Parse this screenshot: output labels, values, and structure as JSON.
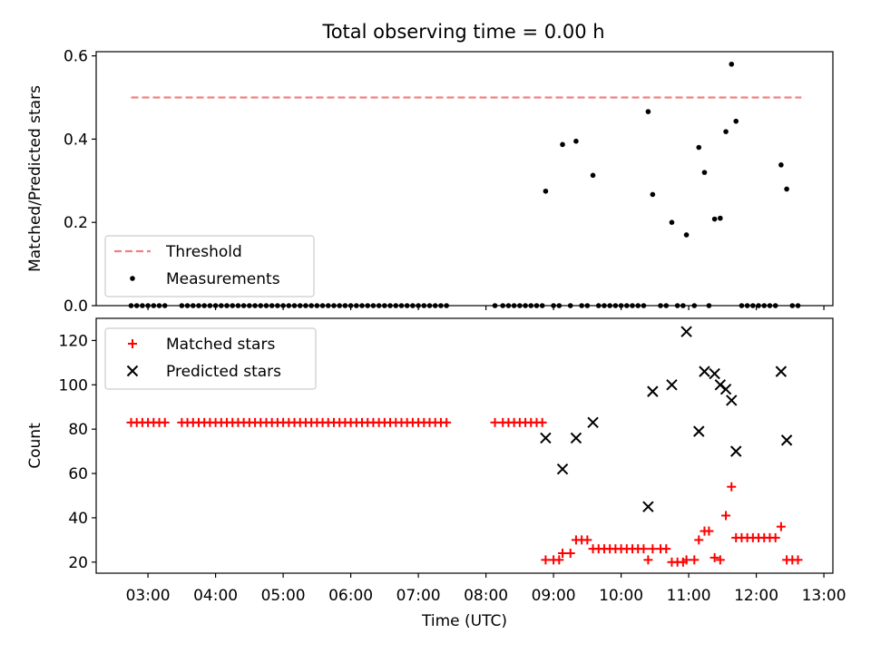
{
  "title": "Total observing time = 0.00 h",
  "colors": {
    "threshold": "#f08080",
    "measurement": "#000000",
    "matched": "#ff0000",
    "predicted": "#000000"
  },
  "chart_data": [
    {
      "type": "scatter",
      "ylabel": "Matched/Predicted stars",
      "ylim": [
        0,
        0.61
      ],
      "yticks": [
        "0.0",
        "0.2",
        "0.4",
        "0.6"
      ],
      "xlim": [
        "02:14",
        "13:08"
      ],
      "legend_position": "lower-left",
      "legend": [
        "Threshold",
        "Measurements"
      ],
      "threshold": {
        "name": "Threshold",
        "value": 0.5,
        "x_range": [
          "02:45",
          "12:40"
        ]
      },
      "series": [
        {
          "name": "Measurements",
          "points": [
            [
              "02:45",
              0
            ],
            [
              "02:50",
              0
            ],
            [
              "02:55",
              0
            ],
            [
              "03:00",
              0
            ],
            [
              "03:05",
              0
            ],
            [
              "03:10",
              0
            ],
            [
              "03:15",
              0
            ],
            [
              "03:30",
              0
            ],
            [
              "03:35",
              0
            ],
            [
              "03:40",
              0
            ],
            [
              "03:45",
              0
            ],
            [
              "03:50",
              0
            ],
            [
              "03:55",
              0
            ],
            [
              "04:00",
              0
            ],
            [
              "04:05",
              0
            ],
            [
              "04:10",
              0
            ],
            [
              "04:15",
              0
            ],
            [
              "04:20",
              0
            ],
            [
              "04:25",
              0
            ],
            [
              "04:30",
              0
            ],
            [
              "04:35",
              0
            ],
            [
              "04:40",
              0
            ],
            [
              "04:45",
              0
            ],
            [
              "04:50",
              0
            ],
            [
              "04:55",
              0
            ],
            [
              "05:00",
              0
            ],
            [
              "05:05",
              0
            ],
            [
              "05:10",
              0
            ],
            [
              "05:15",
              0
            ],
            [
              "05:20",
              0
            ],
            [
              "05:25",
              0
            ],
            [
              "05:30",
              0
            ],
            [
              "05:35",
              0
            ],
            [
              "05:40",
              0
            ],
            [
              "05:45",
              0
            ],
            [
              "05:50",
              0
            ],
            [
              "05:55",
              0
            ],
            [
              "06:00",
              0
            ],
            [
              "06:05",
              0
            ],
            [
              "06:10",
              0
            ],
            [
              "06:15",
              0
            ],
            [
              "06:20",
              0
            ],
            [
              "06:25",
              0
            ],
            [
              "06:30",
              0
            ],
            [
              "06:35",
              0
            ],
            [
              "06:40",
              0
            ],
            [
              "06:45",
              0
            ],
            [
              "06:50",
              0
            ],
            [
              "06:55",
              0
            ],
            [
              "07:00",
              0
            ],
            [
              "07:05",
              0
            ],
            [
              "07:10",
              0
            ],
            [
              "07:15",
              0
            ],
            [
              "07:20",
              0
            ],
            [
              "07:25",
              0
            ],
            [
              "08:08",
              0
            ],
            [
              "08:15",
              0
            ],
            [
              "08:20",
              0
            ],
            [
              "08:25",
              0
            ],
            [
              "08:30",
              0
            ],
            [
              "08:35",
              0
            ],
            [
              "08:40",
              0
            ],
            [
              "08:45",
              0
            ],
            [
              "08:50",
              0
            ],
            [
              "08:53",
              0.275
            ],
            [
              "09:00",
              0
            ],
            [
              "09:05",
              0
            ],
            [
              "09:08",
              0.387
            ],
            [
              "09:15",
              0
            ],
            [
              "09:20",
              0.395
            ],
            [
              "09:25",
              0
            ],
            [
              "09:30",
              0
            ],
            [
              "09:35",
              0.313
            ],
            [
              "09:40",
              0
            ],
            [
              "09:45",
              0
            ],
            [
              "09:50",
              0
            ],
            [
              "09:55",
              0
            ],
            [
              "10:00",
              0
            ],
            [
              "10:05",
              0
            ],
            [
              "10:10",
              0
            ],
            [
              "10:15",
              0
            ],
            [
              "10:20",
              0
            ],
            [
              "10:24",
              0.466
            ],
            [
              "10:28",
              0.267
            ],
            [
              "10:35",
              0
            ],
            [
              "10:40",
              0
            ],
            [
              "10:45",
              0.2
            ],
            [
              "10:50",
              0
            ],
            [
              "10:55",
              0
            ],
            [
              "10:58",
              0.17
            ],
            [
              "11:05",
              0
            ],
            [
              "11:09",
              0.38
            ],
            [
              "11:14",
              0.32
            ],
            [
              "11:18",
              0
            ],
            [
              "11:23",
              0.208
            ],
            [
              "11:28",
              0.21
            ],
            [
              "11:33",
              0.418
            ],
            [
              "11:38",
              0.58
            ],
            [
              "11:42",
              0.443
            ],
            [
              "11:47",
              0
            ],
            [
              "11:52",
              0
            ],
            [
              "11:57",
              0
            ],
            [
              "12:02",
              0
            ],
            [
              "12:07",
              0
            ],
            [
              "12:12",
              0
            ],
            [
              "12:17",
              0
            ],
            [
              "12:22",
              0.338
            ],
            [
              "12:27",
              0.28
            ],
            [
              "12:32",
              0
            ],
            [
              "12:37",
              0
            ]
          ]
        }
      ]
    },
    {
      "type": "scatter",
      "xlabel": "Time (UTC)",
      "ylabel": "Count",
      "ylim": [
        15,
        130
      ],
      "yticks": [
        "20",
        "40",
        "60",
        "80",
        "100",
        "120"
      ],
      "xlim": [
        "02:14",
        "13:08"
      ],
      "xticks": [
        "03:00",
        "04:00",
        "05:00",
        "06:00",
        "07:00",
        "08:00",
        "09:00",
        "10:00",
        "11:00",
        "12:00",
        "13:00"
      ],
      "legend_position": "upper-left",
      "legend": [
        "Matched stars",
        "Predicted stars"
      ],
      "series": [
        {
          "name": "Matched stars",
          "marker": "+",
          "points": [
            [
              "02:45",
              83
            ],
            [
              "02:50",
              83
            ],
            [
              "02:55",
              83
            ],
            [
              "03:00",
              83
            ],
            [
              "03:05",
              83
            ],
            [
              "03:10",
              83
            ],
            [
              "03:15",
              83
            ],
            [
              "03:30",
              83
            ],
            [
              "03:35",
              83
            ],
            [
              "03:40",
              83
            ],
            [
              "03:45",
              83
            ],
            [
              "03:50",
              83
            ],
            [
              "03:55",
              83
            ],
            [
              "04:00",
              83
            ],
            [
              "04:05",
              83
            ],
            [
              "04:10",
              83
            ],
            [
              "04:15",
              83
            ],
            [
              "04:20",
              83
            ],
            [
              "04:25",
              83
            ],
            [
              "04:30",
              83
            ],
            [
              "04:35",
              83
            ],
            [
              "04:40",
              83
            ],
            [
              "04:45",
              83
            ],
            [
              "04:50",
              83
            ],
            [
              "04:55",
              83
            ],
            [
              "05:00",
              83
            ],
            [
              "05:05",
              83
            ],
            [
              "05:10",
              83
            ],
            [
              "05:15",
              83
            ],
            [
              "05:20",
              83
            ],
            [
              "05:25",
              83
            ],
            [
              "05:30",
              83
            ],
            [
              "05:35",
              83
            ],
            [
              "05:40",
              83
            ],
            [
              "05:45",
              83
            ],
            [
              "05:50",
              83
            ],
            [
              "05:55",
              83
            ],
            [
              "06:00",
              83
            ],
            [
              "06:05",
              83
            ],
            [
              "06:10",
              83
            ],
            [
              "06:15",
              83
            ],
            [
              "06:20",
              83
            ],
            [
              "06:25",
              83
            ],
            [
              "06:30",
              83
            ],
            [
              "06:35",
              83
            ],
            [
              "06:40",
              83
            ],
            [
              "06:45",
              83
            ],
            [
              "06:50",
              83
            ],
            [
              "06:55",
              83
            ],
            [
              "07:00",
              83
            ],
            [
              "07:05",
              83
            ],
            [
              "07:10",
              83
            ],
            [
              "07:15",
              83
            ],
            [
              "07:20",
              83
            ],
            [
              "07:25",
              83
            ],
            [
              "08:08",
              83
            ],
            [
              "08:15",
              83
            ],
            [
              "08:20",
              83
            ],
            [
              "08:25",
              83
            ],
            [
              "08:30",
              83
            ],
            [
              "08:35",
              83
            ],
            [
              "08:40",
              83
            ],
            [
              "08:45",
              83
            ],
            [
              "08:50",
              83
            ],
            [
              "08:53",
              21
            ],
            [
              "09:00",
              21
            ],
            [
              "09:05",
              21
            ],
            [
              "09:08",
              24
            ],
            [
              "09:15",
              24
            ],
            [
              "09:20",
              30
            ],
            [
              "09:25",
              30
            ],
            [
              "09:30",
              30
            ],
            [
              "09:35",
              26
            ],
            [
              "09:40",
              26
            ],
            [
              "09:45",
              26
            ],
            [
              "09:50",
              26
            ],
            [
              "09:55",
              26
            ],
            [
              "10:00",
              26
            ],
            [
              "10:05",
              26
            ],
            [
              "10:10",
              26
            ],
            [
              "10:15",
              26
            ],
            [
              "10:20",
              26
            ],
            [
              "10:24",
              21
            ],
            [
              "10:28",
              26
            ],
            [
              "10:35",
              26
            ],
            [
              "10:40",
              26
            ],
            [
              "10:45",
              20
            ],
            [
              "10:50",
              20
            ],
            [
              "10:55",
              20
            ],
            [
              "10:58",
              21
            ],
            [
              "11:05",
              21
            ],
            [
              "11:09",
              30
            ],
            [
              "11:14",
              34
            ],
            [
              "11:18",
              34
            ],
            [
              "11:23",
              22
            ],
            [
              "11:28",
              21
            ],
            [
              "11:33",
              41
            ],
            [
              "11:38",
              54
            ],
            [
              "11:42",
              31
            ],
            [
              "11:47",
              31
            ],
            [
              "11:52",
              31
            ],
            [
              "11:57",
              31
            ],
            [
              "12:02",
              31
            ],
            [
              "12:07",
              31
            ],
            [
              "12:12",
              31
            ],
            [
              "12:17",
              31
            ],
            [
              "12:22",
              36
            ],
            [
              "12:27",
              21
            ],
            [
              "12:32",
              21
            ],
            [
              "12:37",
              21
            ]
          ]
        },
        {
          "name": "Predicted stars",
          "marker": "x",
          "points": [
            [
              "08:53",
              76
            ],
            [
              "09:08",
              62
            ],
            [
              "09:20",
              76
            ],
            [
              "09:35",
              83
            ],
            [
              "10:24",
              45
            ],
            [
              "10:28",
              97
            ],
            [
              "10:45",
              100
            ],
            [
              "10:58",
              124
            ],
            [
              "11:09",
              79
            ],
            [
              "11:14",
              106
            ],
            [
              "11:23",
              105
            ],
            [
              "11:28",
              100
            ],
            [
              "11:33",
              98
            ],
            [
              "11:38",
              93
            ],
            [
              "11:42",
              70
            ],
            [
              "12:22",
              106
            ],
            [
              "12:27",
              75
            ]
          ]
        }
      ]
    }
  ]
}
